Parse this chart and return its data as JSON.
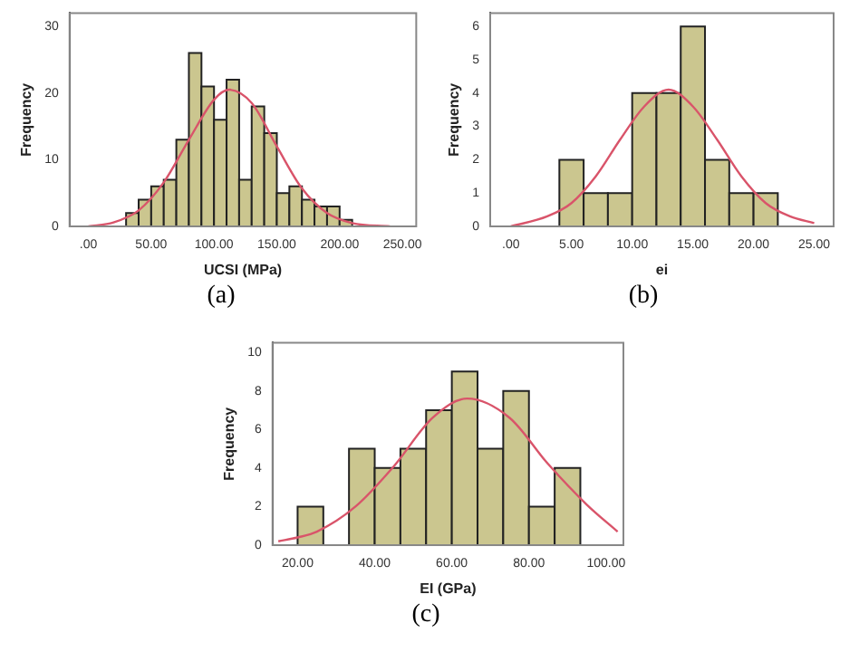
{
  "chart_data": [
    {
      "type": "histogram",
      "xlabel": "UCSI (MPa)",
      "ylabel": "Frequency",
      "annotations": [
        "(a)"
      ],
      "color": "#cbc68f",
      "bins": [
        30,
        40,
        50,
        60,
        70,
        80,
        90,
        100,
        110,
        120,
        130,
        140,
        150,
        160,
        170,
        180,
        190,
        200,
        210
      ],
      "values": [
        2,
        4,
        6,
        7,
        13,
        26,
        21,
        16,
        22,
        7,
        18,
        14,
        5,
        6,
        4,
        3,
        3,
        1
      ],
      "xlim": [
        -15,
        261
      ],
      "ylim": [
        0,
        32
      ],
      "xticks": [
        {
          "value": 0,
          "label": ".00"
        },
        {
          "value": 50,
          "label": "50.00"
        },
        {
          "value": 100,
          "label": "100.00"
        },
        {
          "value": 150,
          "label": "150.00"
        },
        {
          "value": 200,
          "label": "200.00"
        },
        {
          "value": 250,
          "label": "250.00"
        }
      ],
      "yticks": [
        0,
        10,
        20,
        30
      ],
      "grid": false,
      "series": [
        {
          "type": "line",
          "color": "#d9546a",
          "x": [
            0,
            20,
            40,
            60,
            80,
            100,
            112,
            130,
            150,
            170,
            190,
            210,
            240
          ],
          "values": [
            0,
            0.6,
            2.4,
            6.6,
            13,
            19,
            20.5,
            18.5,
            12,
            5.7,
            2,
            0.5,
            0
          ]
        }
      ]
    },
    {
      "type": "histogram",
      "xlabel": "ei",
      "ylabel": "Frequency",
      "annotations": [
        "(b)"
      ],
      "color": "#cbc68f",
      "bins": [
        4,
        6,
        8,
        10,
        12,
        14,
        16,
        18,
        20,
        22
      ],
      "values": [
        2,
        1,
        1,
        4,
        4,
        6,
        2,
        1,
        1
      ],
      "xlim": [
        -1.7,
        26.6
      ],
      "ylim": [
        0,
        6.4
      ],
      "xticks": [
        {
          "value": 0,
          "label": ".00"
        },
        {
          "value": 5,
          "label": "5.00"
        },
        {
          "value": 10,
          "label": "10.00"
        },
        {
          "value": 15,
          "label": "15.00"
        },
        {
          "value": 20,
          "label": "20.00"
        },
        {
          "value": 25,
          "label": "25.00"
        }
      ],
      "yticks": [
        0,
        1,
        2,
        3,
        4,
        5,
        6
      ],
      "grid": false,
      "series": [
        {
          "type": "line",
          "color": "#d9546a",
          "x": [
            0,
            3,
            5,
            7,
            9,
            11,
            13,
            15,
            17,
            19,
            21,
            23,
            25
          ],
          "values": [
            0,
            0.3,
            0.7,
            1.5,
            2.6,
            3.6,
            4.1,
            3.6,
            2.6,
            1.5,
            0.7,
            0.3,
            0.1
          ]
        }
      ]
    },
    {
      "type": "histogram",
      "xlabel": "EI (GPa)",
      "ylabel": "Frequency",
      "annotations": [
        "(c)"
      ],
      "color": "#cbc68f",
      "bins": [
        20,
        26.67,
        33.33,
        40,
        46.67,
        53.33,
        60,
        66.67,
        73.33,
        80,
        86.67,
        93.33
      ],
      "values": [
        2,
        0,
        5,
        4,
        5,
        7,
        9,
        5,
        8,
        2,
        4
      ],
      "xlim": [
        13.5,
        104.5
      ],
      "ylim": [
        0,
        10.5
      ],
      "xticks": [
        {
          "value": 20,
          "label": "20.00"
        },
        {
          "value": 40,
          "label": "40.00"
        },
        {
          "value": 60,
          "label": "60.00"
        },
        {
          "value": 80,
          "label": "80.00"
        },
        {
          "value": 100,
          "label": "100.00"
        }
      ],
      "yticks": [
        0,
        2,
        4,
        6,
        8,
        10
      ],
      "grid": false,
      "series": [
        {
          "type": "line",
          "color": "#d9546a",
          "x": [
            15,
            20,
            25,
            35,
            45,
            55,
            64,
            75,
            85,
            95,
            103
          ],
          "values": [
            0.2,
            0.4,
            0.7,
            2,
            4.1,
            6.6,
            7.6,
            6.6,
            4.2,
            2.1,
            0.7
          ]
        }
      ]
    }
  ]
}
